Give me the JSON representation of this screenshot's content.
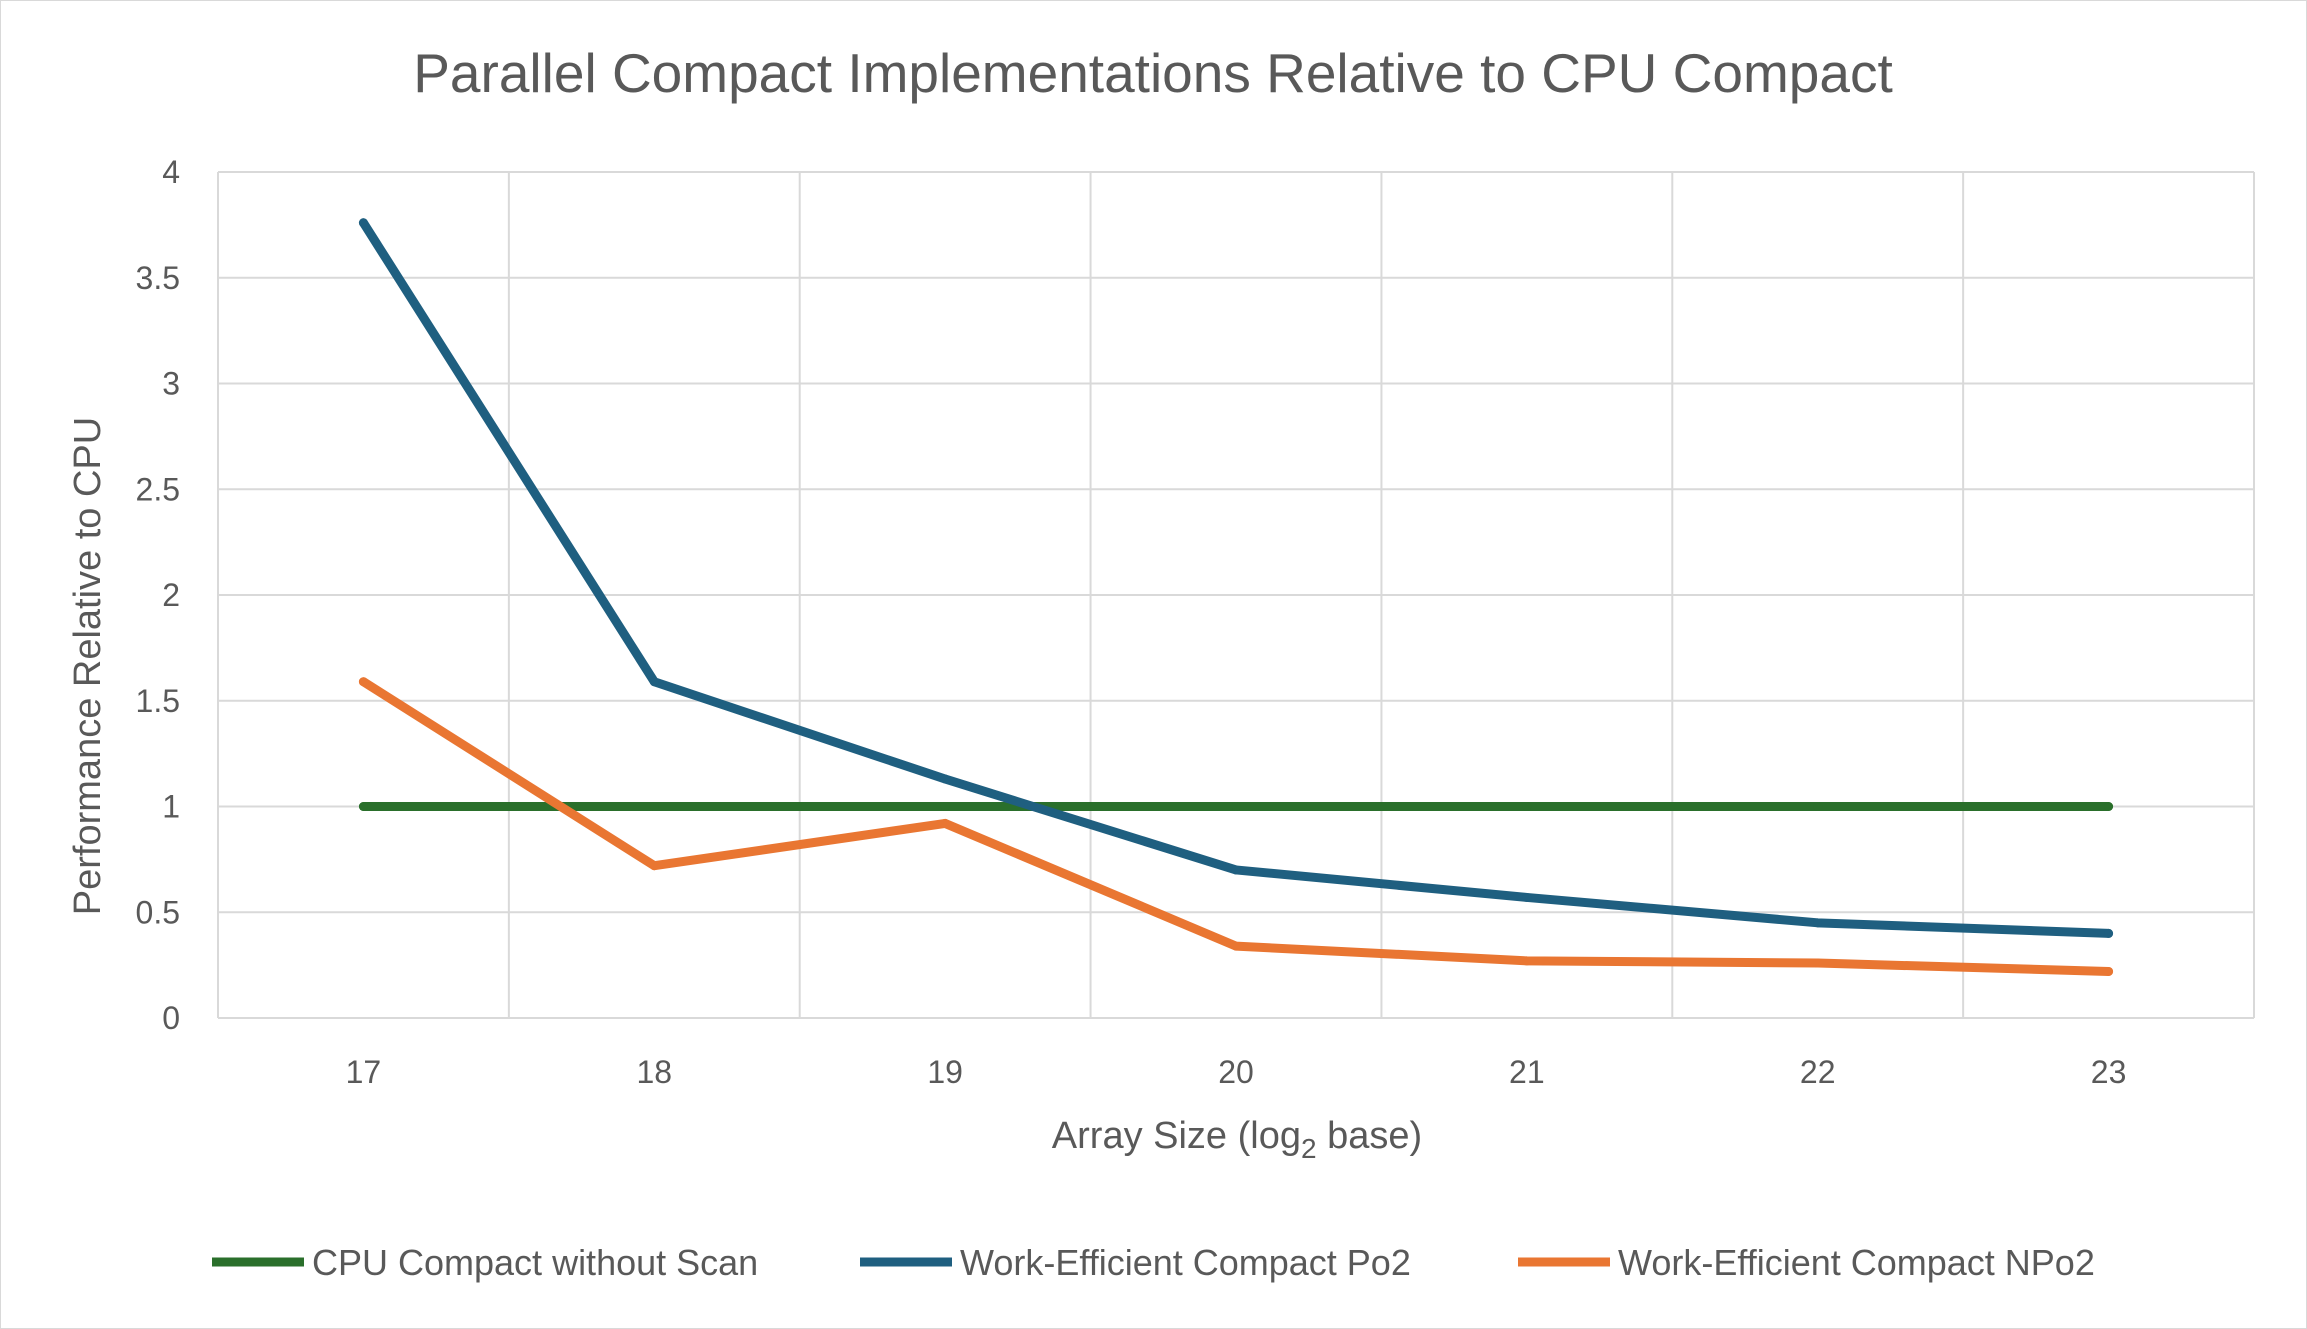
{
  "chart_data": {
    "type": "line",
    "title": "Parallel Compact Implementations Relative to CPU Compact",
    "xlabel": "Array Size (log",
    "xlabel_sub": "2",
    "xlabel_suffix": " base)",
    "ylabel": "Performance Relative to CPU",
    "categories": [
      "17",
      "18",
      "19",
      "20",
      "21",
      "22",
      "23"
    ],
    "y_ticks": [
      "0",
      "0.5",
      "1",
      "1.5",
      "2",
      "2.5",
      "3",
      "3.5",
      "4"
    ],
    "ylim": [
      0,
      4
    ],
    "grid": true,
    "legend_position": "bottom",
    "series": [
      {
        "name": "CPU Compact without Scan",
        "color": "#2a6f2b",
        "values": [
          1,
          1,
          1,
          1,
          1,
          1,
          1
        ]
      },
      {
        "name": "Work-Efficient Compact Po2",
        "color": "#1f5f80",
        "values": [
          3.76,
          1.59,
          1.13,
          0.7,
          0.57,
          0.45,
          0.4
        ]
      },
      {
        "name": "Work-Efficient Compact NPo2",
        "color": "#e97632",
        "values": [
          1.59,
          0.72,
          0.92,
          0.34,
          0.27,
          0.26,
          0.22
        ]
      }
    ]
  }
}
